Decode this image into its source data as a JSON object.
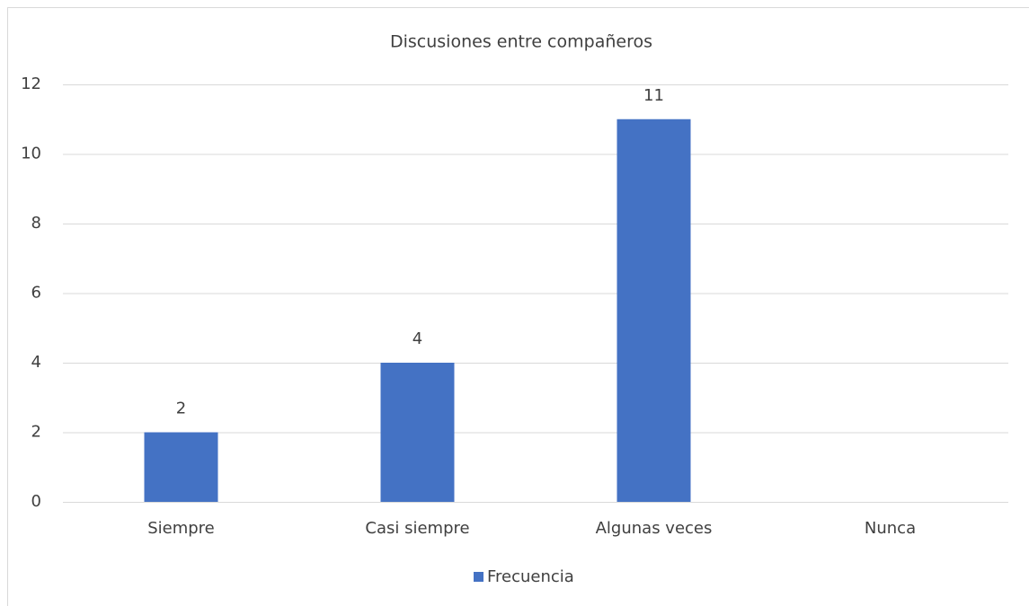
{
  "chart_data": {
    "type": "bar",
    "title": "Discusiones entre compañeros",
    "categories": [
      "Siempre",
      "Casi siempre",
      "Algunas veces",
      "Nunca"
    ],
    "series": [
      {
        "name": "Frecuencia",
        "color": "#4472c4",
        "values": [
          2,
          4,
          11,
          null
        ]
      }
    ],
    "ylim": [
      0,
      12
    ],
    "yticks": [
      0,
      2,
      4,
      6,
      8,
      10,
      12
    ],
    "grid": true,
    "data_labels": true,
    "legend": "bottom"
  }
}
